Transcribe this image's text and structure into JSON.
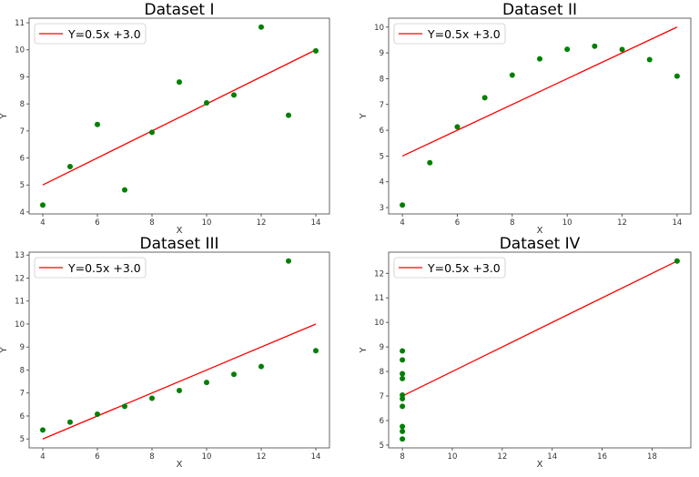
{
  "chart_data": [
    {
      "type": "scatter",
      "title": "Dataset I",
      "xlabel": "X",
      "ylabel": "Y",
      "legend": "Y=0.5x +3.0",
      "legend_position": "top-left",
      "x": [
        10,
        8,
        13,
        9,
        11,
        14,
        6,
        4,
        12,
        7,
        5
      ],
      "y": [
        8.04,
        6.95,
        7.58,
        8.81,
        8.33,
        9.96,
        7.24,
        4.26,
        10.84,
        4.82,
        5.68
      ],
      "line": {
        "slope": 0.5,
        "intercept": 3.0,
        "x": [
          4,
          14
        ]
      },
      "xlim": [
        3.5,
        14.5
      ],
      "ylim": [
        3.93,
        11.17
      ],
      "xticks": [
        4,
        6,
        8,
        10,
        12,
        14
      ],
      "yticks": [
        4,
        5,
        6,
        7,
        8,
        9,
        10,
        11
      ]
    },
    {
      "type": "scatter",
      "title": "Dataset II",
      "xlabel": "X",
      "ylabel": "Y",
      "legend": "Y=0.5x +3.0",
      "legend_position": "top-left",
      "x": [
        10,
        8,
        13,
        9,
        11,
        14,
        6,
        4,
        12,
        7,
        5
      ],
      "y": [
        9.14,
        8.14,
        8.74,
        8.77,
        9.26,
        8.1,
        6.13,
        3.1,
        9.13,
        7.26,
        4.74
      ],
      "line": {
        "slope": 0.5,
        "intercept": 3.0,
        "x": [
          4,
          14
        ]
      },
      "xlim": [
        3.5,
        14.5
      ],
      "ylim": [
        2.755,
        10.345
      ],
      "xticks": [
        4,
        6,
        8,
        10,
        12,
        14
      ],
      "yticks": [
        3,
        4,
        5,
        6,
        7,
        8,
        9,
        10
      ]
    },
    {
      "type": "scatter",
      "title": "Dataset III",
      "xlabel": "X",
      "ylabel": "Y",
      "legend": "Y=0.5x +3.0",
      "legend_position": "top-left",
      "x": [
        10,
        8,
        13,
        9,
        11,
        14,
        6,
        4,
        12,
        7,
        5
      ],
      "y": [
        7.46,
        6.77,
        12.74,
        7.11,
        7.81,
        8.84,
        6.08,
        5.39,
        8.15,
        6.42,
        5.73
      ],
      "line": {
        "slope": 0.5,
        "intercept": 3.0,
        "x": [
          4,
          14
        ]
      },
      "xlim": [
        3.5,
        14.5
      ],
      "ylim": [
        4.613,
        13.127
      ],
      "xticks": [
        4,
        6,
        8,
        10,
        12,
        14
      ],
      "yticks": [
        5,
        6,
        7,
        8,
        9,
        10,
        11,
        12,
        13
      ]
    },
    {
      "type": "scatter",
      "title": "Dataset IV",
      "xlabel": "X",
      "ylabel": "Y",
      "legend": "Y=0.5x +3.0",
      "legend_position": "top-left",
      "x": [
        8,
        8,
        8,
        8,
        8,
        8,
        8,
        19,
        8,
        8,
        8
      ],
      "y": [
        6.58,
        5.76,
        7.71,
        8.84,
        8.47,
        7.04,
        5.25,
        12.5,
        5.56,
        7.91,
        6.89
      ],
      "line": {
        "slope": 0.5,
        "intercept": 3.0,
        "x": [
          8,
          19
        ]
      },
      "xlim": [
        7.45,
        19.55
      ],
      "ylim": [
        4.8875,
        12.8625
      ],
      "xticks": [
        8,
        10,
        12,
        14,
        16,
        18
      ],
      "yticks": [
        5,
        6,
        7,
        8,
        9,
        10,
        11,
        12
      ]
    }
  ],
  "colors": {
    "points": "#008000",
    "line": "#ff0000"
  }
}
